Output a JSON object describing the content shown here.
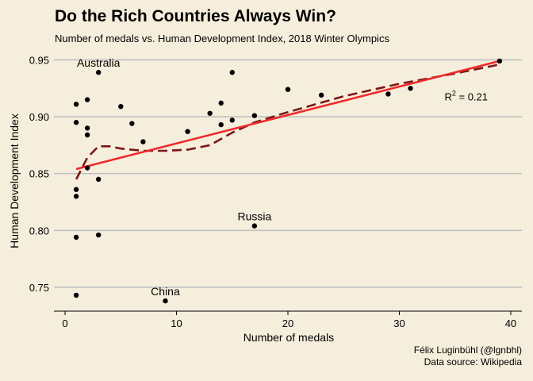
{
  "title": "Do the Rich Countries Always Win?",
  "subtitle": "Number of medals vs. Human Development Index, 2018 Winter Olympics",
  "caption": [
    "Félix Luginbühl (@lgnbhl)",
    "Data source: Wikipedia"
  ],
  "colors": {
    "background": "#f5eedc",
    "gridline": "#c0c0c0",
    "point": "#000000",
    "linear_fit": "#ee2a2a",
    "loess_fit": "#7a1818"
  },
  "chart_data": {
    "type": "scatter",
    "xlabel": "Number of medals",
    "ylabel": "Human Development Index",
    "xlim": [
      -1,
      41
    ],
    "ylim": [
      0.729,
      0.958
    ],
    "x_ticks": [
      0,
      10,
      20,
      30,
      40
    ],
    "y_ticks": [
      0.75,
      0.8,
      0.85,
      0.9,
      0.95
    ],
    "y_tick_labels": [
      "0.75",
      "0.80",
      "0.85",
      "0.90",
      "0.95"
    ],
    "grid": "horizontal",
    "points": [
      {
        "x": 39,
        "y": 0.949,
        "label": ""
      },
      {
        "x": 31,
        "y": 0.925,
        "label": ""
      },
      {
        "x": 29,
        "y": 0.92,
        "label": ""
      },
      {
        "x": 23,
        "y": 0.919,
        "label": ""
      },
      {
        "x": 20,
        "y": 0.924,
        "label": ""
      },
      {
        "x": 17,
        "y": 0.901,
        "label": ""
      },
      {
        "x": 17,
        "y": 0.804,
        "label": "Russia"
      },
      {
        "x": 15,
        "y": 0.939,
        "label": ""
      },
      {
        "x": 15,
        "y": 0.897,
        "label": ""
      },
      {
        "x": 14,
        "y": 0.912,
        "label": ""
      },
      {
        "x": 14,
        "y": 0.893,
        "label": ""
      },
      {
        "x": 13,
        "y": 0.903,
        "label": ""
      },
      {
        "x": 11,
        "y": 0.887,
        "label": ""
      },
      {
        "x": 9,
        "y": 0.738,
        "label": "China"
      },
      {
        "x": 7,
        "y": 0.878,
        "label": ""
      },
      {
        "x": 6,
        "y": 0.894,
        "label": ""
      },
      {
        "x": 5,
        "y": 0.909,
        "label": ""
      },
      {
        "x": 3,
        "y": 0.939,
        "label": "Australia"
      },
      {
        "x": 3,
        "y": 0.845,
        "label": ""
      },
      {
        "x": 3,
        "y": 0.796,
        "label": ""
      },
      {
        "x": 2,
        "y": 0.915,
        "label": ""
      },
      {
        "x": 2,
        "y": 0.89,
        "label": ""
      },
      {
        "x": 2,
        "y": 0.884,
        "label": ""
      },
      {
        "x": 2,
        "y": 0.855,
        "label": ""
      },
      {
        "x": 1,
        "y": 0.911,
        "label": ""
      },
      {
        "x": 1,
        "y": 0.895,
        "label": ""
      },
      {
        "x": 1,
        "y": 0.836,
        "label": ""
      },
      {
        "x": 1,
        "y": 0.83,
        "label": ""
      },
      {
        "x": 1,
        "y": 0.794,
        "label": ""
      },
      {
        "x": 1,
        "y": 0.743,
        "label": ""
      }
    ],
    "linear_fit": {
      "x": [
        1,
        39
      ],
      "y": [
        0.854,
        0.949
      ]
    },
    "loess_fit": {
      "x": [
        1,
        2,
        3,
        4,
        5,
        7,
        9,
        11,
        13,
        15,
        17,
        20,
        25,
        30,
        35,
        39
      ],
      "y": [
        0.845,
        0.864,
        0.874,
        0.874,
        0.872,
        0.87,
        0.87,
        0.871,
        0.875,
        0.886,
        0.895,
        0.904,
        0.918,
        0.929,
        0.938,
        0.946
      ]
    },
    "annotation": {
      "x": 36,
      "y": 0.917,
      "base": "R",
      "sup": "2",
      "rest": " = 0.21"
    }
  }
}
